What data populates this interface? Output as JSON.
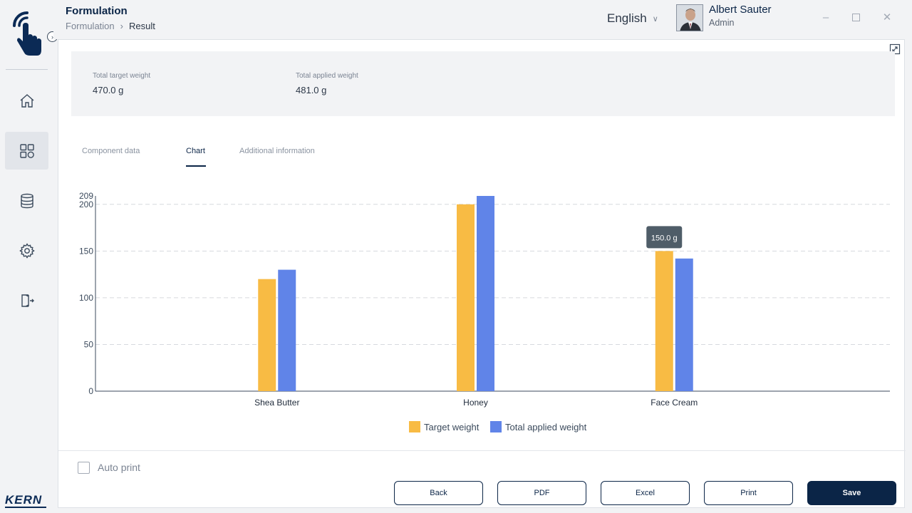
{
  "header": {
    "title": "Formulation",
    "breadcrumb": [
      "Formulation",
      "Result"
    ],
    "language": "English",
    "user_name": "Albert Sauter",
    "user_role": "Admin"
  },
  "sidebar": {
    "brand": "KERN",
    "items": [
      {
        "icon": "home-icon",
        "active": false
      },
      {
        "icon": "dashboard-icon",
        "active": true
      },
      {
        "icon": "database-icon",
        "active": false
      },
      {
        "icon": "settings-icon",
        "active": false
      },
      {
        "icon": "logout-icon",
        "active": false
      }
    ]
  },
  "summary": {
    "target_label": "Total target weight",
    "target_value": "470.0 g",
    "applied_label": "Total applied weight",
    "applied_value": "481.0 g"
  },
  "tabs": [
    {
      "label": "Component data",
      "active": false
    },
    {
      "label": "Chart",
      "active": true
    },
    {
      "label": "Additional information",
      "active": false
    }
  ],
  "chart_data": {
    "type": "bar",
    "categories": [
      "Shea Butter",
      "Honey",
      "Face Cream"
    ],
    "series": [
      {
        "name": "Target weight",
        "values": [
          120,
          200,
          150
        ],
        "color": "#f8bb44"
      },
      {
        "name": "Total applied weight",
        "values": [
          130,
          209,
          142
        ],
        "color": "#6084e8"
      }
    ],
    "ylim": [
      0,
      209
    ],
    "yticks": [
      0,
      50,
      100,
      150,
      200,
      209
    ],
    "grid": true,
    "legend": "bottom",
    "tooltip": "150.0 g"
  },
  "footer": {
    "auto_print_label": "Auto print",
    "auto_print_checked": false,
    "buttons": {
      "back": "Back",
      "pdf": "PDF",
      "excel": "Excel",
      "print": "Print",
      "save": "Save"
    }
  },
  "colors": {
    "primary": "#0b2547",
    "target": "#f8bb44",
    "applied": "#6084e8"
  }
}
